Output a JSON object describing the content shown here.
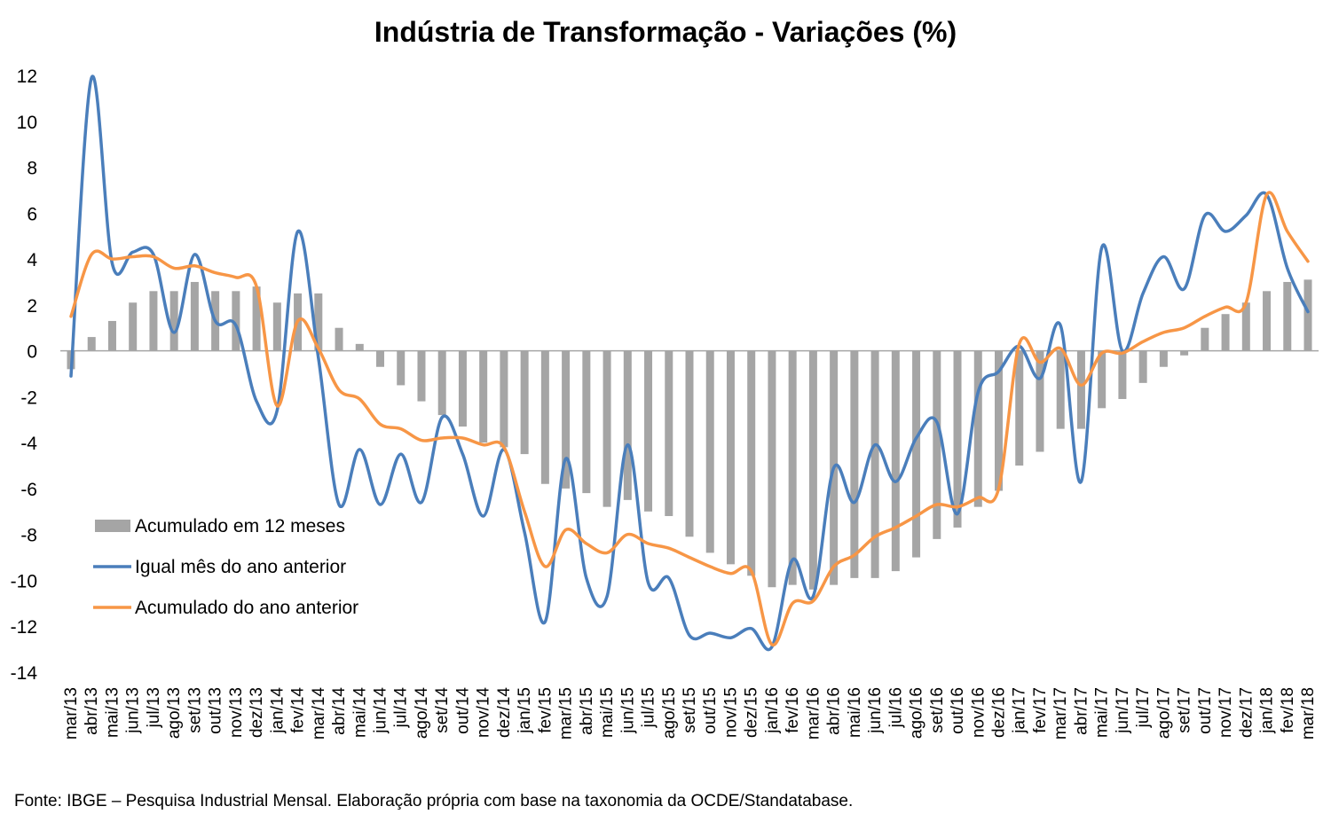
{
  "chart_data": {
    "type": "bar",
    "title": "Indústria de Transformação - Variações (%)",
    "source": "Fonte: IBGE – Pesquisa Industrial Mensal. Elaboração própria com base na taxonomia da OCDE/Standatabase.",
    "ylim": [
      -14,
      12
    ],
    "yticks": [
      12,
      10,
      8,
      6,
      4,
      2,
      0,
      -2,
      -4,
      -6,
      -8,
      -10,
      -12,
      -14
    ],
    "grid": false,
    "legend_position": "bottom-left",
    "categories": [
      "mar/13",
      "abr/13",
      "mai/13",
      "jun/13",
      "jul/13",
      "ago/13",
      "set/13",
      "out/13",
      "nov/13",
      "dez/13",
      "jan/14",
      "fev/14",
      "mar/14",
      "abr/14",
      "mai/14",
      "jun/14",
      "jul/14",
      "ago/14",
      "set/14",
      "out/14",
      "nov/14",
      "dez/14",
      "jan/15",
      "fev/15",
      "mar/15",
      "abr/15",
      "mai/15",
      "jun/15",
      "jul/15",
      "ago/15",
      "set/15",
      "out/15",
      "nov/15",
      "dez/15",
      "jan/16",
      "fev/16",
      "mar/16",
      "abr/16",
      "mai/16",
      "jun/16",
      "jul/16",
      "ago/16",
      "set/16",
      "out/16",
      "nov/16",
      "dez/16",
      "jan/17",
      "fev/17",
      "mar/17",
      "abr/17",
      "mai/17",
      "jun/17",
      "jul/17",
      "ago/17",
      "set/17",
      "out/17",
      "nov/17",
      "dez/17",
      "jan/18",
      "fev/18",
      "mar/18"
    ],
    "series": [
      {
        "name": "Acumulado em 12 meses",
        "type": "bar",
        "color": "#a5a5a5",
        "values": [
          -0.8,
          0.6,
          1.3,
          2.1,
          2.6,
          2.6,
          3.0,
          2.6,
          2.6,
          2.8,
          2.1,
          2.5,
          2.5,
          1.0,
          0.3,
          -0.7,
          -1.5,
          -2.2,
          -2.8,
          -3.3,
          -4.0,
          -4.2,
          -4.5,
          -5.8,
          -6.0,
          -6.2,
          -6.8,
          -6.5,
          -7.0,
          -7.2,
          -8.1,
          -8.8,
          -9.3,
          -9.8,
          -10.3,
          -10.2,
          -10.4,
          -10.2,
          -9.9,
          -9.9,
          -9.6,
          -9.0,
          -8.2,
          -7.7,
          -6.8,
          -6.1,
          -5.0,
          -4.4,
          -3.4,
          -3.4,
          -2.5,
          -2.1,
          -1.4,
          -0.7,
          -0.2,
          1.0,
          1.6,
          2.1,
          2.6,
          3.0,
          3.1
        ]
      },
      {
        "name": "Igual mês do ano anterior",
        "type": "line",
        "color": "#4a7ebb",
        "values": [
          -1.1,
          11.9,
          3.8,
          4.3,
          4.2,
          0.8,
          4.2,
          1.3,
          1.1,
          -2.2,
          -2.6,
          5.2,
          -0.3,
          -6.7,
          -4.3,
          -6.7,
          -4.5,
          -6.6,
          -2.9,
          -4.5,
          -7.2,
          -4.3,
          -7.9,
          -11.8,
          -4.7,
          -9.9,
          -10.7,
          -4.1,
          -10.1,
          -9.9,
          -12.4,
          -12.3,
          -12.5,
          -12.1,
          -12.9,
          -9.1,
          -10.7,
          -5.1,
          -6.6,
          -4.1,
          -5.7,
          -3.8,
          -3.1,
          -7.1,
          -1.8,
          -0.9,
          0.2,
          -1.2,
          1.1,
          -5.7,
          4.5,
          0.0,
          2.5,
          4.1,
          2.7,
          5.9,
          5.2,
          5.9,
          6.8,
          3.6,
          1.7
        ]
      },
      {
        "name": "Acumulado do ano anterior",
        "type": "line",
        "color": "#f79646",
        "values": [
          1.5,
          4.2,
          4.0,
          4.1,
          4.1,
          3.6,
          3.7,
          3.4,
          3.2,
          2.8,
          -2.4,
          1.3,
          0.1,
          -1.7,
          -2.1,
          -3.2,
          -3.4,
          -3.9,
          -3.8,
          -3.8,
          -4.1,
          -4.2,
          -7.0,
          -9.4,
          -7.8,
          -8.4,
          -8.8,
          -8.0,
          -8.4,
          -8.6,
          -9.0,
          -9.4,
          -9.7,
          -9.6,
          -12.8,
          -11.0,
          -10.9,
          -9.4,
          -8.9,
          -8.1,
          -7.7,
          -7.2,
          -6.7,
          -6.8,
          -6.4,
          -6.0,
          0.3,
          -0.5,
          0.1,
          -1.5,
          -0.1,
          -0.1,
          0.4,
          0.8,
          1.0,
          1.5,
          1.9,
          2.1,
          6.8,
          5.2,
          3.9
        ]
      }
    ]
  }
}
